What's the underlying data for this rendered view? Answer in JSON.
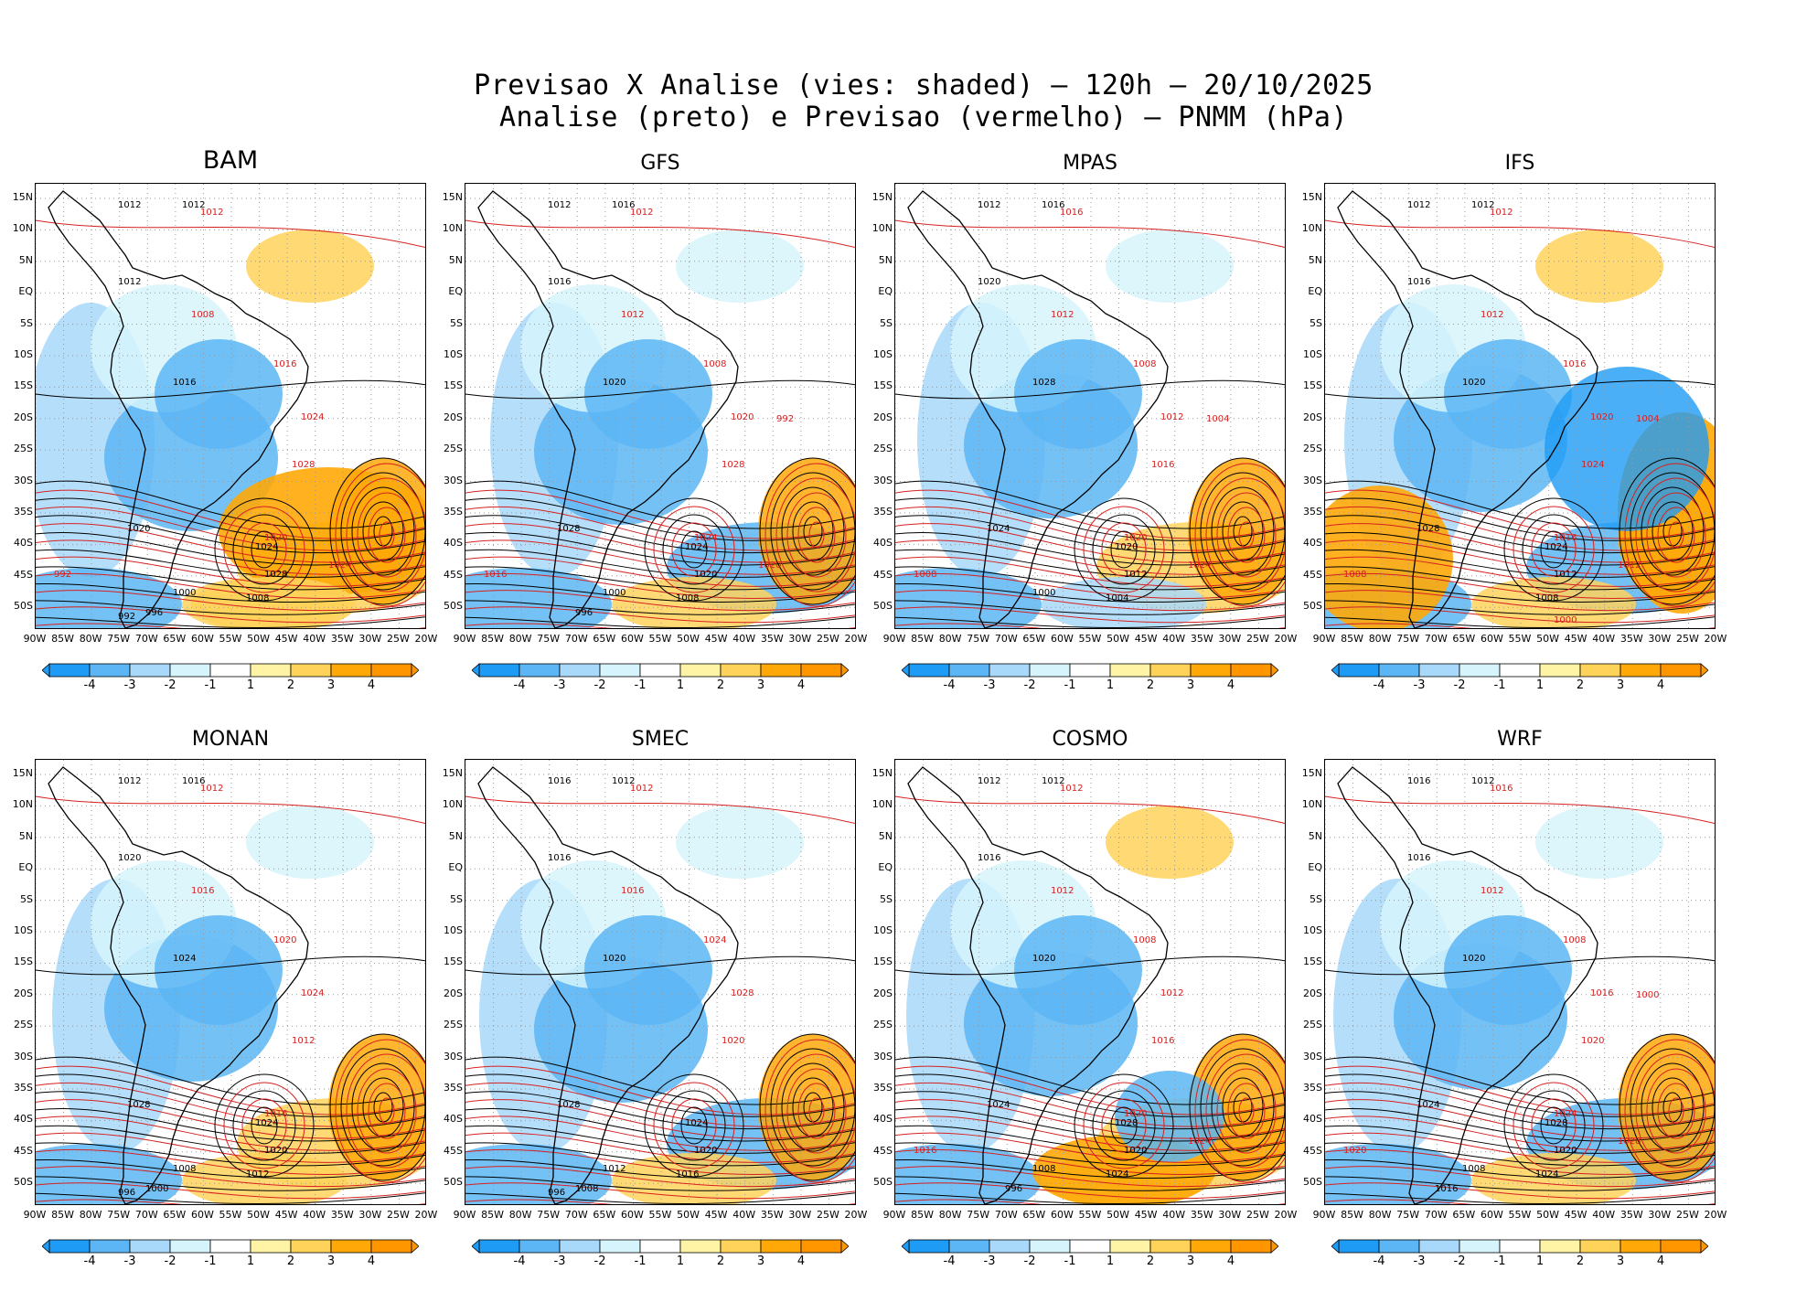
{
  "title": {
    "line1": "Previsao X Analise (vies: shaded) — 120h — 20/10/2025",
    "line2": "Analise (preto) e Previsao (vermelho) — PNMM (hPa)"
  },
  "lat_labels": [
    "15N",
    "10N",
    "5N",
    "EQ",
    "5S",
    "10S",
    "15S",
    "20S",
    "25S",
    "30S",
    "35S",
    "40S",
    "45S",
    "50S"
  ],
  "lon_labels": [
    "90W",
    "85W",
    "80W",
    "75W",
    "70W",
    "65W",
    "60W",
    "55W",
    "50W",
    "45W",
    "40W",
    "35W",
    "30W",
    "25W",
    "20W"
  ],
  "colorbar": {
    "labels": [
      "-4",
      "-3",
      "-2",
      "-1",
      "1",
      "2",
      "3",
      "4"
    ],
    "colors": [
      "#1e9bf5",
      "#5cb6f5",
      "#a8d8fa",
      "#d6f4fc",
      "#ffffff",
      "#fff4a6",
      "#ffd25a",
      "#ffa808",
      "#ff9600"
    ]
  },
  "colors": {
    "analysis": "#000000",
    "forecast": "#d62020"
  },
  "panels": [
    {
      "name": "BAM",
      "iso_black": [
        "1012",
        "1012",
        "1012",
        "1016",
        "1020",
        "1024",
        "1028",
        "1008",
        "1000",
        "996",
        "992"
      ],
      "iso_red": [
        "1012",
        "1008",
        "1016",
        "1024",
        "1028",
        "1020",
        "1024",
        "992"
      ]
    },
    {
      "name": "GFS",
      "iso_black": [
        "1012",
        "1016",
        "1016",
        "1020",
        "1028",
        "1024",
        "1020",
        "1008",
        "1000",
        "996"
      ],
      "iso_red": [
        "1012",
        "1012",
        "1008",
        "1020",
        "1028",
        "1024",
        "1020",
        "1016",
        "992"
      ]
    },
    {
      "name": "MPAS",
      "iso_black": [
        "1012",
        "1016",
        "1020",
        "1028",
        "1024",
        "1020",
        "1012",
        "1004",
        "1000"
      ],
      "iso_red": [
        "1016",
        "1012",
        "1008",
        "1012",
        "1016",
        "1020",
        "1024",
        "1008",
        "1004"
      ]
    },
    {
      "name": "IFS",
      "iso_black": [
        "1012",
        "1012",
        "1016",
        "1020",
        "1028",
        "1024",
        "1012",
        "1008"
      ],
      "iso_red": [
        "1012",
        "1012",
        "1016",
        "1020",
        "1024",
        "1016",
        "1012",
        "1008",
        "1004",
        "1000"
      ]
    },
    {
      "name": "MONAN",
      "iso_black": [
        "1012",
        "1016",
        "1020",
        "1024",
        "1028",
        "1024",
        "1020",
        "1012",
        "1008",
        "1000",
        "996"
      ],
      "iso_red": [
        "1012",
        "1016",
        "1020",
        "1024",
        "1012",
        "1016"
      ]
    },
    {
      "name": "SMEC",
      "iso_black": [
        "1016",
        "1012",
        "1016",
        "1020",
        "1028",
        "1024",
        "1020",
        "1016",
        "1012",
        "1008",
        "996"
      ],
      "iso_red": [
        "1012",
        "1016",
        "1024",
        "1028",
        "1020"
      ]
    },
    {
      "name": "COSMO",
      "iso_black": [
        "1012",
        "1012",
        "1016",
        "1020",
        "1024",
        "1028",
        "1020",
        "1024",
        "1008",
        "996"
      ],
      "iso_red": [
        "1012",
        "1012",
        "1008",
        "1012",
        "1016",
        "1020",
        "1024",
        "1016"
      ]
    },
    {
      "name": "WRF",
      "iso_black": [
        "1016",
        "1012",
        "1016",
        "1020",
        "1024",
        "1028",
        "1020",
        "1024",
        "1008",
        "1016"
      ],
      "iso_red": [
        "1016",
        "1012",
        "1008",
        "1016",
        "1020",
        "1024",
        "1028",
        "1020",
        "1000"
      ]
    }
  ]
}
